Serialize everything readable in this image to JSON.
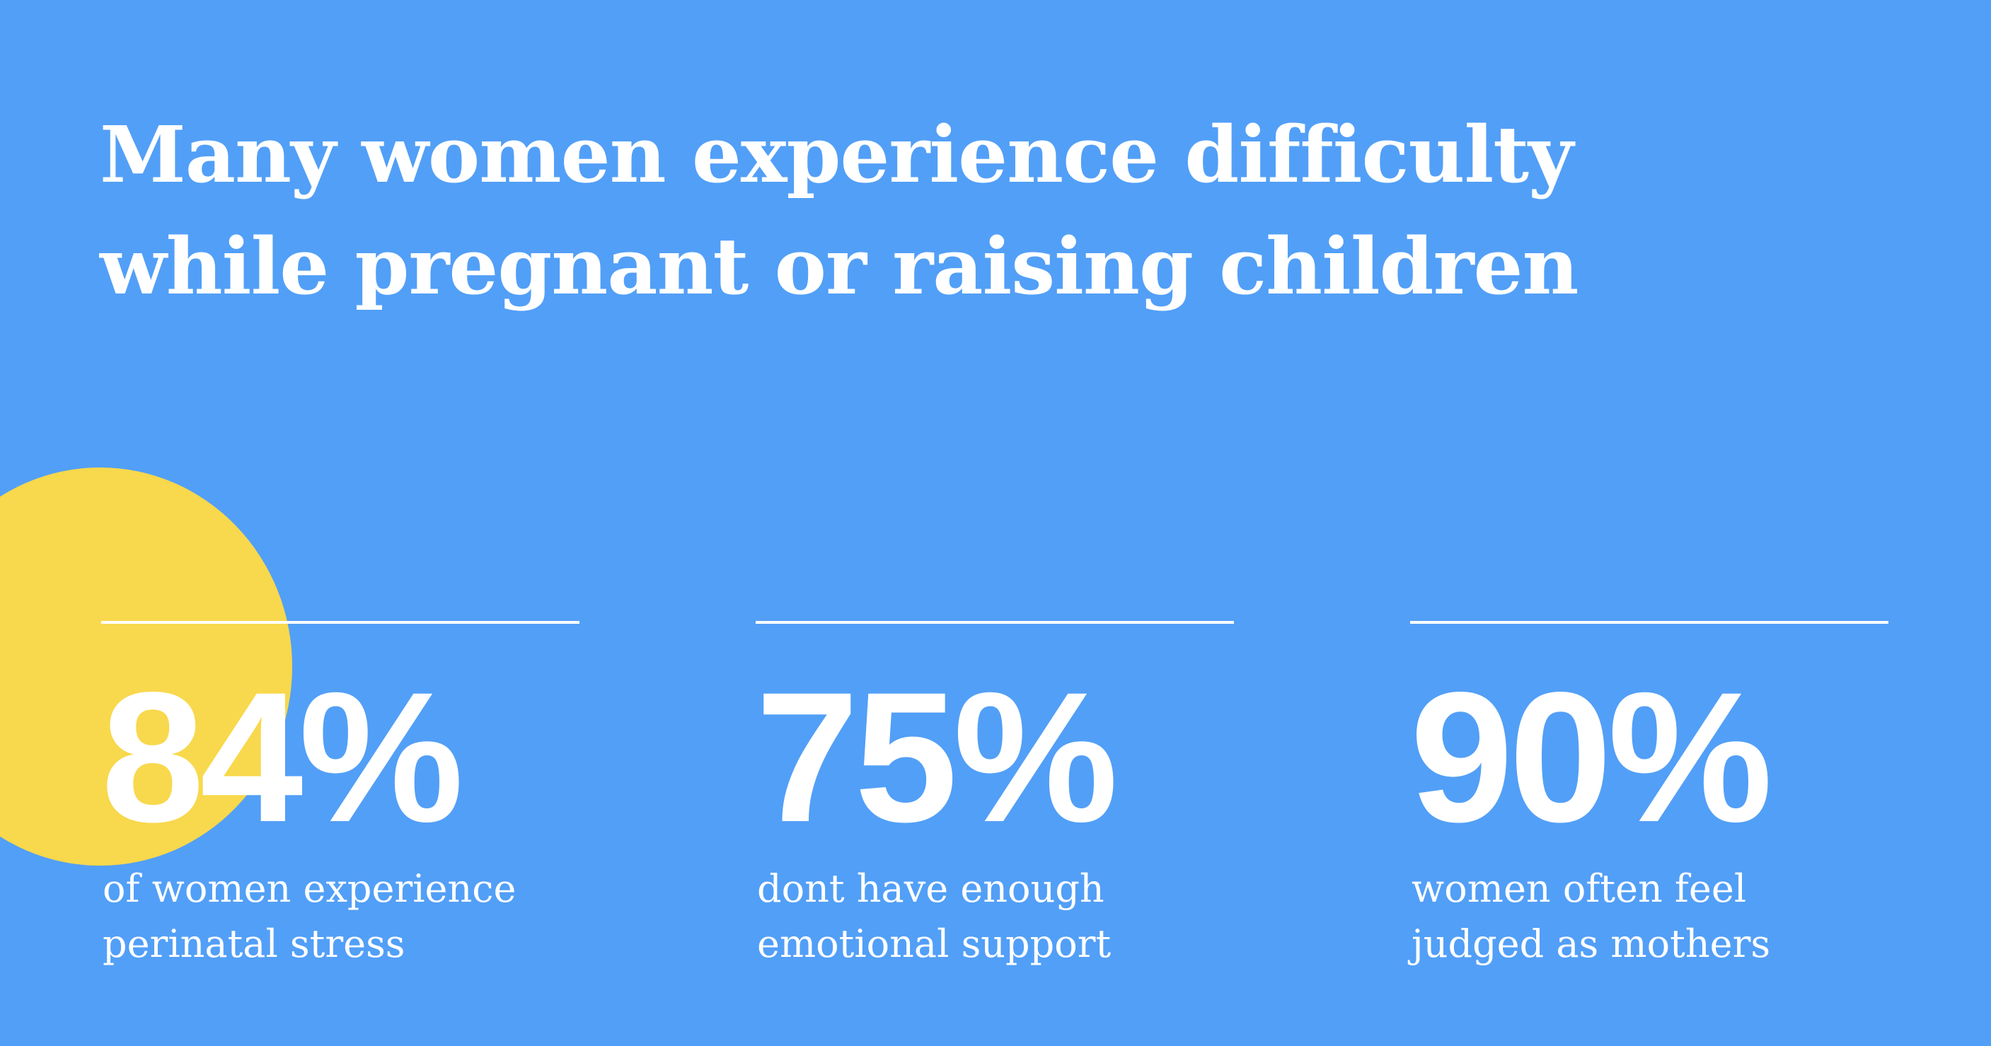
{
  "headline": {
    "line1": "Many women experience difficulty",
    "line2": "while pregnant or raising children"
  },
  "stats": [
    {
      "value": "84%",
      "line1": "of women experience",
      "line2": "perinatal stress"
    },
    {
      "value": "75%",
      "line1": "dont have enough",
      "line2": "emotional support"
    },
    {
      "value": "90%",
      "line1": "women often feel",
      "line2": "judged as mothers"
    }
  ],
  "colors": {
    "background": "#529ff7",
    "accent_circle": "#f8d84c",
    "text": "#ffffff"
  }
}
